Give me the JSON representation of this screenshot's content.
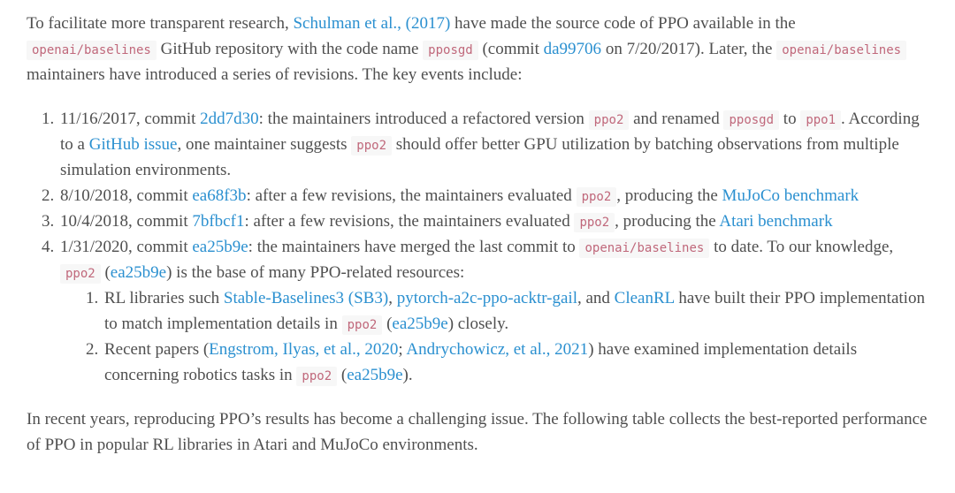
{
  "page": {
    "colors": {
      "text_color": "#4f4f4f",
      "link_color": "#2b90d0",
      "code_color": "#c0687b",
      "code_bg": "#f7f7f7",
      "page_bg": "#ffffff"
    }
  },
  "intro_paragraph": {
    "segments": [
      {
        "t": "text",
        "v": "To facilitate more transparent research, "
      },
      {
        "t": "link",
        "v": "Schulman et al., (2017)"
      },
      {
        "t": "text",
        "v": " have made the source code of PPO available in the "
      },
      {
        "t": "code",
        "v": "openai/baselines"
      },
      {
        "t": "text",
        "v": " GitHub repository with the code name "
      },
      {
        "t": "code",
        "v": "pposgd"
      },
      {
        "t": "text",
        "v": " (commit "
      },
      {
        "t": "link",
        "v": "da99706"
      },
      {
        "t": "text",
        "v": " on 7/20/2017). Later, the "
      },
      {
        "t": "code",
        "v": "openai/baselines"
      },
      {
        "t": "text",
        "v": " maintainers have introduced a series of revisions. The key events include:"
      }
    ]
  },
  "key_events_list": {
    "items": [
      {
        "segments": [
          {
            "t": "text",
            "v": "11/16/2017, commit "
          },
          {
            "t": "link",
            "v": "2dd7d30"
          },
          {
            "t": "text",
            "v": ": the maintainers introduced a refactored version "
          },
          {
            "t": "code",
            "v": "ppo2"
          },
          {
            "t": "text",
            "v": " and renamed "
          },
          {
            "t": "code",
            "v": "pposgd"
          },
          {
            "t": "text",
            "v": " to "
          },
          {
            "t": "code",
            "v": "ppo1"
          },
          {
            "t": "text",
            "v": ". According to a "
          },
          {
            "t": "link",
            "v": "GitHub issue"
          },
          {
            "t": "text",
            "v": ", one maintainer suggests "
          },
          {
            "t": "code",
            "v": "ppo2"
          },
          {
            "t": "text",
            "v": " should offer better GPU utilization by batching observations from multiple simulation environments."
          }
        ]
      },
      {
        "segments": [
          {
            "t": "text",
            "v": "8/10/2018, commit "
          },
          {
            "t": "link",
            "v": "ea68f3b"
          },
          {
            "t": "text",
            "v": ": after a few revisions, the maintainers evaluated "
          },
          {
            "t": "code",
            "v": "ppo2"
          },
          {
            "t": "text",
            "v": ", producing the "
          },
          {
            "t": "link",
            "v": "MuJoCo benchmark"
          }
        ]
      },
      {
        "segments": [
          {
            "t": "text",
            "v": "10/4/2018, commit "
          },
          {
            "t": "link",
            "v": "7bfbcf1"
          },
          {
            "t": "text",
            "v": ": after a few revisions, the maintainers evaluated "
          },
          {
            "t": "code",
            "v": "ppo2"
          },
          {
            "t": "text",
            "v": ", producing the "
          },
          {
            "t": "link",
            "v": "Atari benchmark"
          }
        ]
      },
      {
        "segments": [
          {
            "t": "text",
            "v": "1/31/2020, commit "
          },
          {
            "t": "link",
            "v": "ea25b9e"
          },
          {
            "t": "text",
            "v": ": the maintainers have merged the last commit to "
          },
          {
            "t": "code",
            "v": "openai/baselines"
          },
          {
            "t": "text",
            "v": " to date. To our knowledge, "
          },
          {
            "t": "code",
            "v": "ppo2"
          },
          {
            "t": "text",
            "v": " ("
          },
          {
            "t": "link",
            "v": "ea25b9e"
          },
          {
            "t": "text",
            "v": ") is the base of many PPO-related resources:"
          }
        ],
        "sub_items": [
          {
            "segments": [
              {
                "t": "text",
                "v": "RL libraries such "
              },
              {
                "t": "link",
                "v": "Stable-Baselines3 (SB3)"
              },
              {
                "t": "text",
                "v": ", "
              },
              {
                "t": "link",
                "v": "pytorch-a2c-ppo-acktr-gail"
              },
              {
                "t": "text",
                "v": ", and "
              },
              {
                "t": "link",
                "v": "CleanRL"
              },
              {
                "t": "text",
                "v": " have built their PPO implementation to match implementation details in "
              },
              {
                "t": "code",
                "v": "ppo2"
              },
              {
                "t": "text",
                "v": " ("
              },
              {
                "t": "link",
                "v": "ea25b9e"
              },
              {
                "t": "text",
                "v": ") closely."
              }
            ]
          },
          {
            "segments": [
              {
                "t": "text",
                "v": "Recent papers ("
              },
              {
                "t": "link",
                "v": "Engstrom, Ilyas, et al., 2020"
              },
              {
                "t": "text",
                "v": "; "
              },
              {
                "t": "link",
                "v": "Andrychowicz, et al., 2021"
              },
              {
                "t": "text",
                "v": ") have examined implementation details concerning robotics tasks in "
              },
              {
                "t": "code",
                "v": "ppo2"
              },
              {
                "t": "text",
                "v": " ("
              },
              {
                "t": "link",
                "v": "ea25b9e"
              },
              {
                "t": "text",
                "v": ")."
              }
            ]
          }
        ]
      }
    ]
  },
  "closing_paragraph": {
    "segments": [
      {
        "t": "text",
        "v": "In recent years, reproducing PPO’s results has become a challenging issue. The following table collects the best-reported performance of PPO in popular RL libraries in Atari and MuJoCo environments."
      }
    ]
  }
}
